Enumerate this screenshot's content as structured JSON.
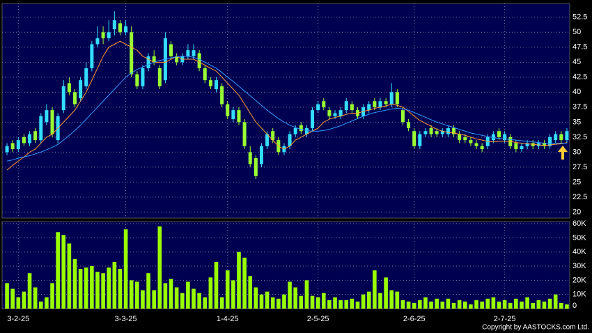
{
  "chart_data": {
    "type": "candlestick",
    "categories": [
      null,
      null,
      "3-2-25",
      null,
      null,
      null,
      null,
      null,
      null,
      null,
      null,
      null,
      null,
      null,
      null,
      null,
      null,
      null,
      null,
      null,
      null,
      "3-3-25",
      null,
      null,
      null,
      null,
      null,
      null,
      null,
      null,
      null,
      null,
      null,
      null,
      null,
      null,
      null,
      null,
      null,
      "1-4-25",
      null,
      null,
      null,
      null,
      null,
      null,
      null,
      null,
      null,
      null,
      null,
      null,
      null,
      null,
      null,
      "2-5-25",
      null,
      null,
      null,
      null,
      null,
      null,
      null,
      null,
      null,
      null,
      null,
      null,
      null,
      null,
      null,
      null,
      "2-6-25",
      null,
      null,
      null,
      null,
      null,
      null,
      null,
      null,
      null,
      null,
      null,
      null,
      null,
      null,
      null,
      "2-7-25",
      null,
      null,
      null,
      null,
      null,
      null,
      null,
      null,
      null,
      null,
      null
    ],
    "open": [
      30,
      31.5,
      30.5,
      32.5,
      31.5,
      33.5,
      32,
      35,
      37,
      32,
      37,
      41.5,
      40,
      39,
      41,
      44,
      48,
      50,
      49,
      50.5,
      51.5,
      50,
      50,
      43,
      41,
      44,
      46,
      44,
      42,
      48,
      46,
      45,
      46,
      46,
      46.5,
      44,
      42,
      40.5,
      41,
      38,
      35.5,
      37,
      35,
      30,
      29,
      28,
      31,
      33.5,
      32,
      30,
      31,
      33,
      34.5,
      33,
      34,
      37,
      38.5,
      37,
      36,
      36,
      37,
      38,
      37,
      36,
      37,
      38.5,
      37.5,
      38.5,
      38,
      40,
      37,
      35,
      33.5,
      31,
      33,
      34,
      33.5,
      33,
      33,
      34,
      33,
      32.5,
      32,
      31.5,
      31,
      31,
      32,
      33.5,
      32,
      32.5,
      31.5,
      30.5,
      31,
      31.5,
      31,
      31.5,
      31,
      32,
      33,
      32
    ],
    "high": [
      31.5,
      32,
      32.5,
      33,
      33.5,
      34,
      36.5,
      38,
      37.5,
      36.5,
      42,
      42.5,
      40.5,
      42.5,
      45,
      48.5,
      51,
      51,
      52,
      53.5,
      52,
      52,
      51,
      43.5,
      44.5,
      46.5,
      47,
      44.5,
      50,
      48.5,
      46.5,
      46.5,
      48,
      48,
      47,
      44.5,
      42.5,
      42.5,
      41.5,
      38.5,
      37.5,
      37.5,
      35.5,
      31,
      29.5,
      31.5,
      33.5,
      34,
      32.5,
      31.5,
      33.5,
      34.5,
      35,
      34.5,
      37.5,
      38.5,
      39,
      37.5,
      37,
      37.5,
      39,
      38.5,
      37.5,
      38,
      38.5,
      39,
      39,
      39,
      41.5,
      40.5,
      37.5,
      35.5,
      34,
      33.5,
      34,
      34.5,
      34,
      34,
      34.5,
      34.5,
      33.5,
      33,
      32.5,
      32,
      31.5,
      33,
      33.5,
      34,
      33.5,
      33,
      32,
      31.5,
      32,
      32,
      32,
      32,
      33,
      33.5,
      33.5,
      34
    ],
    "low": [
      29.5,
      30,
      30,
      31,
      31,
      31.5,
      31.5,
      34.5,
      32.5,
      31.5,
      36.5,
      39.5,
      37.5,
      38.5,
      40.5,
      43.5,
      47.5,
      48,
      48.5,
      49.5,
      49.5,
      49.5,
      42.5,
      40.5,
      40.5,
      43.5,
      44.5,
      40.5,
      41.5,
      45.5,
      44.5,
      44.5,
      45.5,
      45.5,
      43.5,
      41.5,
      40.5,
      40,
      37.5,
      35.5,
      35,
      34.5,
      30.5,
      27.5,
      25.5,
      27.5,
      30.5,
      31.5,
      29.5,
      29.5,
      30.5,
      32.5,
      33,
      32.5,
      33.5,
      36.5,
      37,
      35.5,
      35.5,
      35.5,
      36.5,
      36.5,
      35.5,
      35.5,
      36.5,
      37,
      37,
      37.5,
      37.5,
      37.5,
      34.5,
      33.5,
      30.5,
      30.5,
      32.5,
      32.5,
      32.5,
      32.5,
      32.5,
      32.5,
      31.5,
      31.5,
      31,
      30.5,
      30,
      30.5,
      31.5,
      32,
      31.5,
      30.5,
      30,
      30,
      30.5,
      30.5,
      30.5,
      30.5,
      30.5,
      31.5,
      31.5,
      31.5
    ],
    "close": [
      31,
      30.5,
      32,
      31.5,
      33,
      32,
      36,
      37,
      33,
      36,
      41,
      40,
      38,
      42,
      44,
      48,
      49,
      49,
      50,
      52,
      50,
      51,
      43,
      41,
      44,
      46,
      45,
      41,
      49,
      46,
      45,
      46,
      47,
      47,
      44,
      42,
      41,
      42,
      38,
      36,
      37,
      35,
      31,
      28,
      26,
      31,
      33,
      32,
      30,
      31,
      33,
      34,
      33.5,
      34,
      37,
      38,
      37.5,
      36,
      36.5,
      37,
      38.5,
      37,
      36,
      37.5,
      38,
      37.5,
      38.5,
      38,
      40,
      38,
      35,
      34,
      31,
      33,
      33.5,
      33,
      33,
      33.5,
      34,
      33,
      32,
      32,
      31.5,
      31,
      30.5,
      32.5,
      33,
      32.5,
      33,
      31,
      30.5,
      31,
      31.5,
      31,
      31.5,
      31,
      32.5,
      33,
      32,
      33.5
    ],
    "up_color": "#33ddff",
    "down_color": "#99ff33",
    "ma_lines": [
      {
        "color": "#ff9933",
        "values": [
          27,
          27.8,
          28.5,
          29.2,
          30,
          30.5,
          31.5,
          32.5,
          33,
          34,
          35,
          36,
          37,
          38.5,
          40,
          42,
          44,
          46,
          47.5,
          48,
          48.5,
          48,
          47.5,
          47,
          46,
          45.5,
          45,
          45,
          45,
          45.5,
          46,
          45.5,
          45.5,
          45.5,
          45,
          44.5,
          44,
          43.5,
          42.5,
          41.5,
          40.5,
          39.5,
          38,
          36.5,
          35,
          34,
          33,
          32,
          31,
          30.5,
          31,
          32,
          32.5,
          33,
          33.5,
          34,
          35,
          35.5,
          35.8,
          36,
          36.3,
          36.5,
          36.5,
          36.8,
          37,
          37.3,
          37.5,
          37.7,
          38,
          37.8,
          37.5,
          36.8,
          36,
          35.3,
          34.8,
          34.3,
          33.8,
          33.5,
          33.3,
          33.2,
          33,
          32.8,
          32.5,
          32.2,
          32,
          31.8,
          31.7,
          31.8,
          31.8,
          31.8,
          31.6,
          31.5,
          31.4,
          31.3,
          31.2,
          31.1,
          31.2,
          31.3,
          31.4,
          31.6
        ]
      },
      {
        "color": "#3399ff",
        "values": [
          28.5,
          28.7,
          29,
          29.2,
          29.4,
          29.7,
          30,
          30.4,
          30.8,
          31.3,
          32,
          32.8,
          33.6,
          34.5,
          35.5,
          36.5,
          37.5,
          38.5,
          39.5,
          40.5,
          41.5,
          42.5,
          43.2,
          43.8,
          44.2,
          44.6,
          45,
          45.3,
          45.5,
          45.7,
          45.9,
          46,
          46,
          45.8,
          45.5,
          45,
          44.5,
          44,
          43.3,
          42.5,
          41.8,
          41,
          40.2,
          39.4,
          38.6,
          37.8,
          37,
          36.3,
          35.6,
          35,
          34.5,
          34.1,
          33.8,
          33.6,
          33.5,
          33.5,
          33.6,
          33.8,
          34.1,
          34.4,
          34.8,
          35.2,
          35.6,
          36,
          36.3,
          36.6,
          36.8,
          37,
          37.2,
          37.3,
          37.2,
          37,
          36.6,
          36.2,
          35.8,
          35.4,
          35,
          34.7,
          34.4,
          34.1,
          33.8,
          33.5,
          33.2,
          33,
          32.8,
          32.6,
          32.4,
          32.3,
          32.2,
          32.1,
          32,
          31.9,
          31.8,
          31.7,
          31.6,
          31.5,
          31.5,
          31.5,
          31.5,
          31.5
        ]
      }
    ],
    "ylim": [
      19,
      54.8
    ],
    "yticks": [
      20,
      22.5,
      25,
      27.5,
      30,
      32.5,
      35,
      37.5,
      40,
      42.5,
      45,
      47.5,
      50,
      52.5
    ],
    "grid": true,
    "volume": {
      "type": "bar",
      "color": "#99ff00",
      "values": [
        18,
        14,
        8,
        12,
        25,
        15,
        5,
        8,
        18,
        54,
        52,
        46,
        35,
        28,
        29,
        30,
        26,
        25,
        29,
        33,
        28,
        56,
        20,
        19,
        13,
        25,
        13,
        58,
        18,
        21,
        15,
        11,
        19,
        14,
        11,
        8,
        22,
        33,
        8,
        27,
        20,
        40,
        36,
        23,
        15,
        10,
        12,
        8,
        7,
        10,
        19,
        15,
        9,
        20,
        9,
        8,
        11,
        6,
        8,
        6,
        6,
        7,
        5,
        10,
        12,
        27,
        11,
        22,
        13,
        12,
        6,
        5,
        4,
        6,
        8,
        5,
        7,
        5,
        7,
        4,
        6,
        5,
        3,
        6,
        5,
        7,
        8,
        5,
        6,
        4,
        7,
        5,
        8,
        4,
        6,
        5,
        7,
        10,
        4,
        3
      ],
      "ylim": [
        0,
        61.5
      ],
      "yticks": [
        0,
        {
          "value": 10,
          "label": "10K"
        },
        {
          "value": 20,
          "label": "20K"
        },
        {
          "value": 30,
          "label": "30K"
        },
        {
          "value": 40,
          "label": "40K"
        },
        {
          "value": 50,
          "label": "50K"
        },
        {
          "value": 60,
          "label": "60K"
        }
      ]
    },
    "copyright": "Copyright by AASTOCKS.com Ltd."
  }
}
